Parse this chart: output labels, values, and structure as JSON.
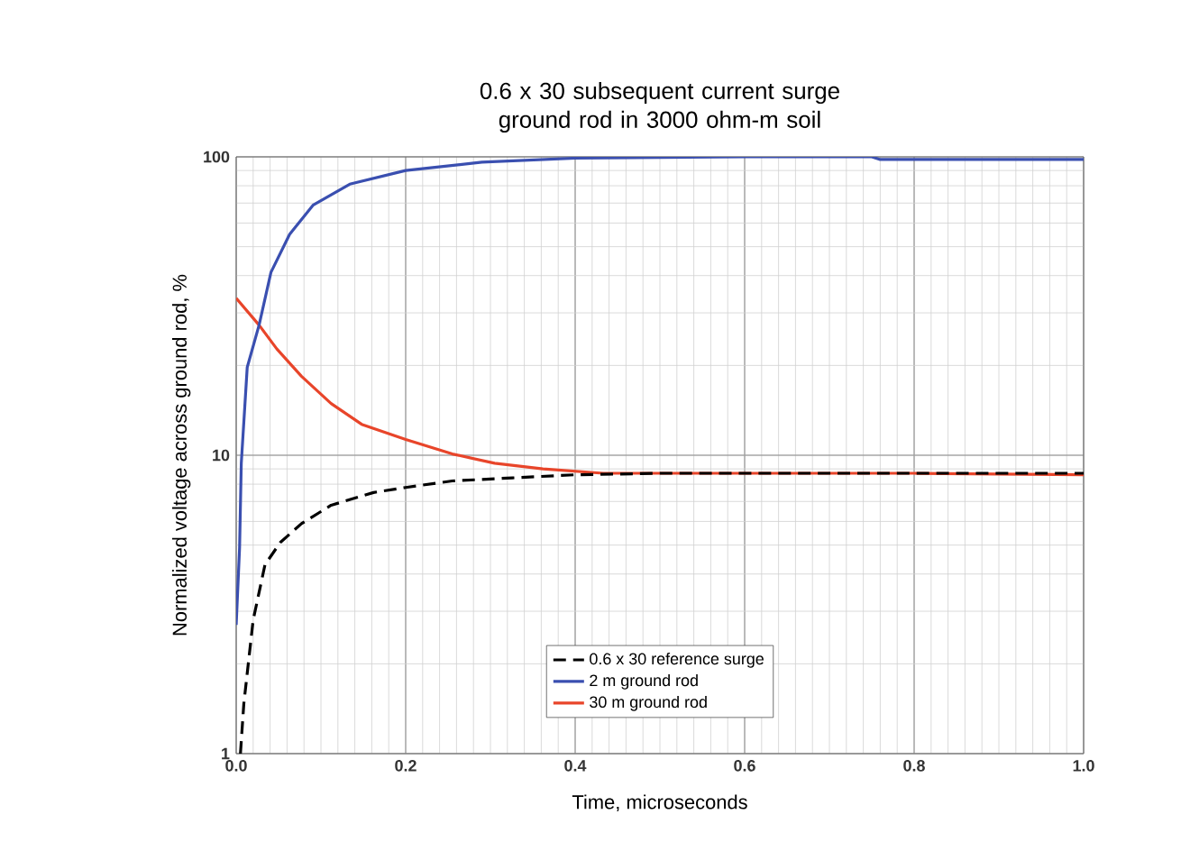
{
  "chart_data": {
    "type": "line",
    "title": "0.6 x 30 subsequent current surge ground rod in 3000 ohm-m soil",
    "xlabel": "Time, microseconds",
    "ylabel": "Normalized voltage across ground rod, %",
    "log": "y",
    "grid": true,
    "legend": "bottom",
    "marker": "none",
    "xlim": [
      0,
      1
    ],
    "ylim": [
      1,
      100
    ],
    "xticks": [
      {
        "value": 0,
        "label": "0.0"
      },
      {
        "value": 0.2,
        "label": "0.2"
      },
      {
        "value": 0.4,
        "label": "0.4"
      },
      {
        "value": 0.6,
        "label": "0.6"
      },
      {
        "value": 0.8,
        "label": "0.8"
      },
      {
        "value": 1,
        "label": "1.0"
      }
    ],
    "yticks": [
      1,
      10,
      100
    ],
    "series": [
      {
        "name": "0.6 x 30 reference surge",
        "color": "#000000",
        "line_style": "dashed",
        "x": [
          0.005,
          0.009,
          0.02,
          0.034,
          0.052,
          0.077,
          0.112,
          0.162,
          0.2,
          0.255,
          0.326,
          0.4,
          0.5,
          0.6,
          0.8,
          1.0
        ],
        "values": [
          1,
          1.47,
          2.8,
          4.3,
          5.1,
          5.9,
          6.8,
          7.5,
          7.8,
          8.2,
          8.4,
          8.6,
          8.7,
          8.7,
          8.7,
          8.7
        ]
      },
      {
        "name": "2 m ground rod",
        "color": "#3a4fb0",
        "line_style": "solid",
        "x": [
          0,
          0.004,
          0.006,
          0.013,
          0.027,
          0.041,
          0.063,
          0.091,
          0.134,
          0.2,
          0.29,
          0.4,
          0.6,
          0.75,
          0.76,
          1.0
        ],
        "values": [
          2.7,
          4.9,
          9.4,
          19.7,
          27.3,
          41,
          55,
          69,
          81,
          90,
          96,
          99,
          100,
          100,
          98,
          98
        ]
      },
      {
        "name": "30 m ground rod",
        "color": "#e8452a",
        "line_style": "solid",
        "x": [
          0,
          0.027,
          0.048,
          0.077,
          0.112,
          0.148,
          0.2,
          0.255,
          0.305,
          0.362,
          0.433,
          0.6,
          0.8,
          1.0
        ],
        "values": [
          33.6,
          27.3,
          22.7,
          18.4,
          14.9,
          12.7,
          11.3,
          10.1,
          9.4,
          9.0,
          8.7,
          8.7,
          8.7,
          8.6
        ]
      }
    ]
  }
}
